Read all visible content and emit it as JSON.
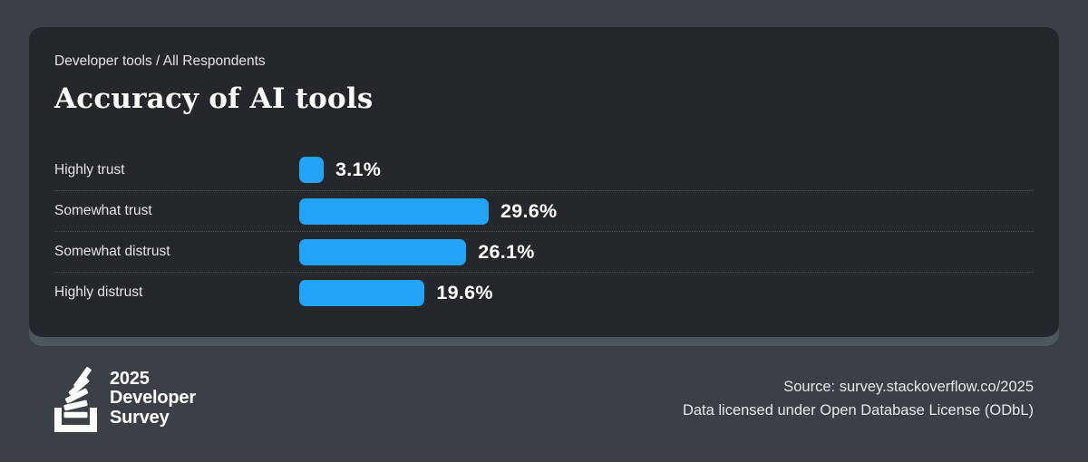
{
  "colors": {
    "page_bg": "#3a4045",
    "card_bg": "#24272b",
    "card_shadow": "#4d555d",
    "bar_blue": "#23a3f5",
    "separator_dotted": "#4a4f54",
    "text_light": "#e3e5e7",
    "text_white": "#ffffff"
  },
  "card": {
    "eyebrow": "Developer tools / All Respondents",
    "title": "Accuracy of AI tools"
  },
  "chart_data": {
    "type": "bar",
    "orientation": "horizontal",
    "title": "Accuracy of AI tools",
    "subtitle": "Developer tools / All Respondents",
    "categories": [
      "Highly trust",
      "Somewhat trust",
      "Somewhat distrust",
      "Highly distrust"
    ],
    "values": [
      3.1,
      29.6,
      26.1,
      19.6
    ],
    "value_labels": [
      "3.1%",
      "29.6%",
      "26.1%",
      "19.6%"
    ],
    "unit": "%",
    "bar_color": "#23a3f5",
    "xlim": [
      0,
      100
    ],
    "grid": "dotted row separators between categories",
    "legend": "none",
    "value_label_position": "right of bar"
  },
  "footer": {
    "logo": {
      "icon": "stackoverflow-stack-icon",
      "line1": "2025",
      "line2": "Developer",
      "line3": "Survey"
    },
    "source_line1": "Source: survey.stackoverflow.co/2025",
    "source_line2": "Data licensed under Open Database License (ODbL)"
  }
}
